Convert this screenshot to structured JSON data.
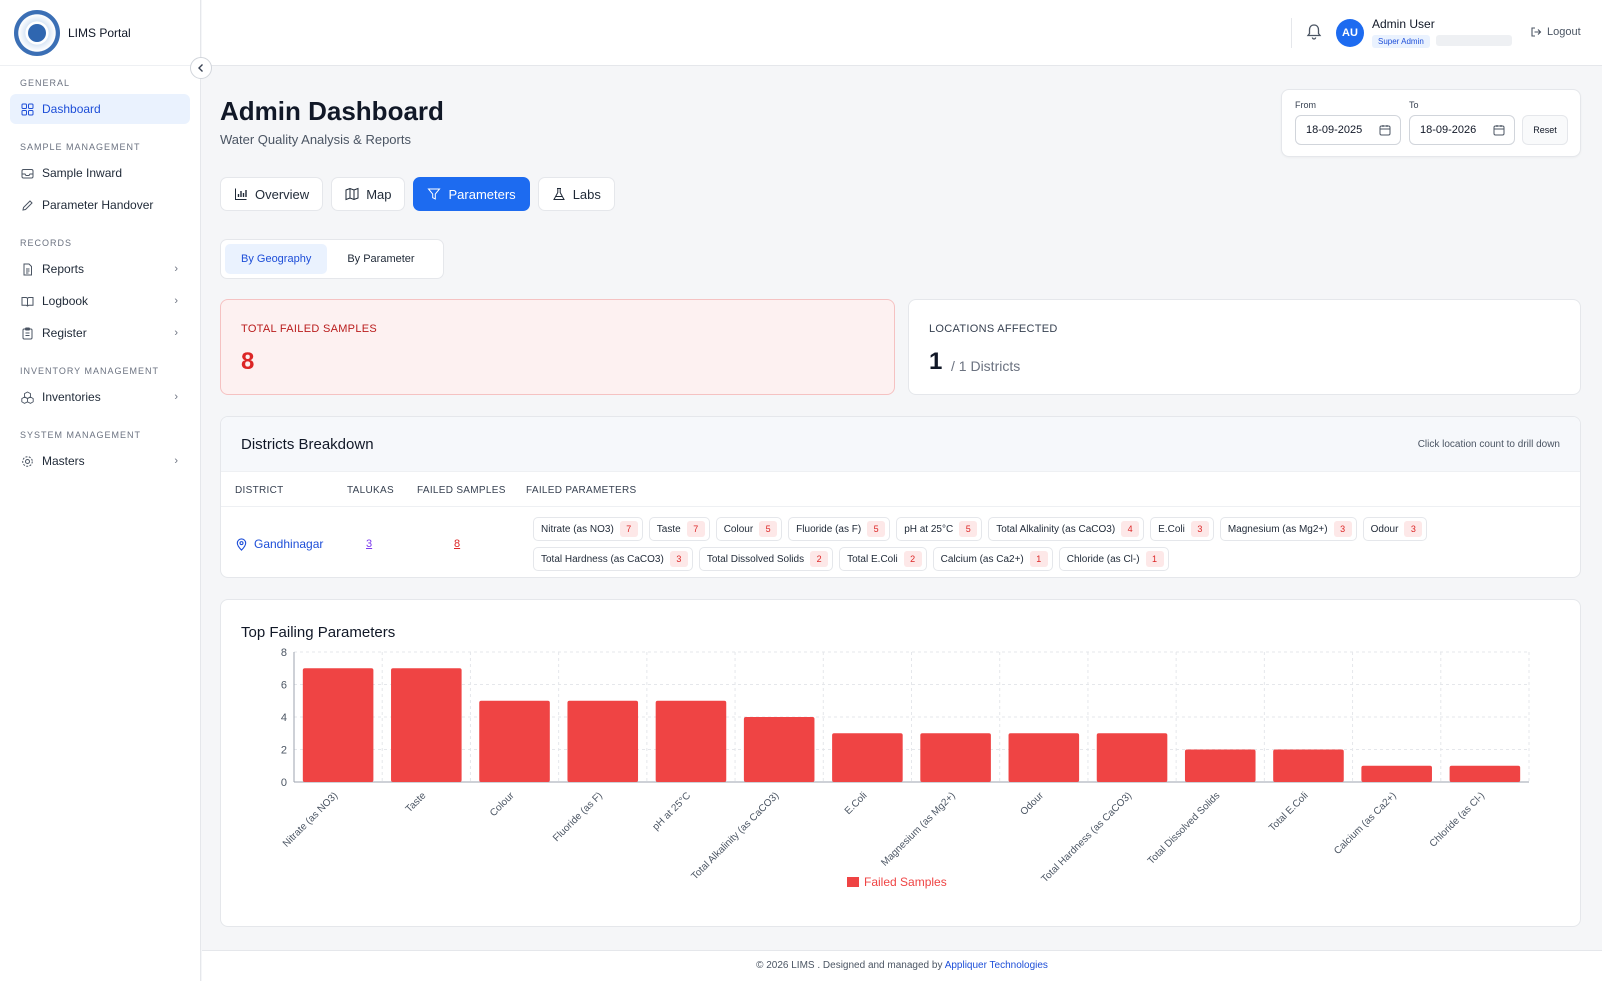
{
  "app": {
    "name": "LIMS Portal"
  },
  "sidebar": {
    "sections": [
      {
        "title": "GENERAL",
        "items": [
          {
            "label": "Dashboard",
            "icon": "grid-icon",
            "active": true
          }
        ]
      },
      {
        "title": "SAMPLE MANAGEMENT",
        "items": [
          {
            "label": "Sample Inward",
            "icon": "inbox-icon"
          },
          {
            "label": "Parameter Handover",
            "icon": "pen-icon"
          }
        ]
      },
      {
        "title": "RECORDS",
        "items": [
          {
            "label": "Reports",
            "icon": "file-icon"
          },
          {
            "label": "Logbook",
            "icon": "book-icon"
          },
          {
            "label": "Register",
            "icon": "clipboard-icon"
          }
        ]
      },
      {
        "title": "INVENTORY MANAGEMENT",
        "items": [
          {
            "label": "Inventories",
            "icon": "boxes-icon"
          }
        ]
      },
      {
        "title": "SYSTEM MANAGEMENT",
        "items": [
          {
            "label": "Masters",
            "icon": "gear-icon"
          }
        ]
      }
    ]
  },
  "header": {
    "user_initials": "AU",
    "user_name": "Admin User",
    "user_role": "Super Admin",
    "logout_label": "Logout"
  },
  "page": {
    "title": "Admin Dashboard",
    "subtitle": "Water Quality Analysis & Reports"
  },
  "date_filter": {
    "from_label": "From",
    "from_value": "18-09-2025",
    "to_label": "To",
    "to_value": "18-09-2026",
    "reset_label": "Reset"
  },
  "tabs": [
    {
      "label": "Overview",
      "icon": "bar-chart-icon"
    },
    {
      "label": "Map",
      "icon": "map-icon"
    },
    {
      "label": "Parameters",
      "icon": "filter-icon",
      "active": true
    },
    {
      "label": "Labs",
      "icon": "flask-icon"
    }
  ],
  "subtabs": [
    {
      "label": "By Geography",
      "active": true
    },
    {
      "label": "By Parameter"
    }
  ],
  "stats": {
    "failed_title": "TOTAL FAILED SAMPLES",
    "failed_value": "8",
    "locations_title": "LOCATIONS AFFECTED",
    "locations_value": "1",
    "locations_suffix": "/ 1 Districts"
  },
  "districts": {
    "title": "Districts Breakdown",
    "hint": "Click location count to drill down",
    "columns": [
      "DISTRICT",
      "TALUKAS",
      "FAILED SAMPLES",
      "FAILED PARAMETERS"
    ],
    "rows": [
      {
        "district": "Gandhinagar",
        "talukas": "3",
        "failed_samples": "8",
        "parameters": [
          {
            "name": "Nitrate (as NO3)",
            "count": "7"
          },
          {
            "name": "Taste",
            "count": "7"
          },
          {
            "name": "Colour",
            "count": "5"
          },
          {
            "name": "Fluoride (as F)",
            "count": "5"
          },
          {
            "name": "pH at 25°C",
            "count": "5"
          },
          {
            "name": "Total Alkalinity (as CaCO3)",
            "count": "4"
          },
          {
            "name": "E.Coli",
            "count": "3"
          },
          {
            "name": "Magnesium (as Mg2+)",
            "count": "3"
          },
          {
            "name": "Odour",
            "count": "3"
          },
          {
            "name": "Total Hardness (as CaCO3)",
            "count": "3"
          },
          {
            "name": "Total Dissolved Solids",
            "count": "2"
          },
          {
            "name": "Total E.Coli",
            "count": "2"
          },
          {
            "name": "Calcium (as Ca2+)",
            "count": "1"
          },
          {
            "name": "Chloride (as Cl-)",
            "count": "1"
          }
        ]
      }
    ]
  },
  "chart_title": "Top Failing Parameters",
  "chart_data": {
    "type": "bar",
    "categories": [
      "Nitrate (as NO3)",
      "Taste",
      "Colour",
      "Fluoride (as F)",
      "pH at 25°C",
      "Total Alkalinity (as CaCO3)",
      "E.Coli",
      "Magnesium (as Mg2+)",
      "Odour",
      "Total Hardness (as CaCO3)",
      "Total Dissolved Solids",
      "Total E.Coli",
      "Calcium (as Ca2+)",
      "Chloride (as Cl-)"
    ],
    "series": [
      {
        "name": "Failed Samples",
        "values": [
          7,
          7,
          5,
          5,
          5,
          4,
          3,
          3,
          3,
          3,
          2,
          2,
          1,
          1
        ]
      }
    ],
    "yticks": [
      0,
      2,
      4,
      6,
      8
    ],
    "ylim": [
      0,
      8
    ],
    "grid": true,
    "legend": "bottom",
    "colors": {
      "bar": "#ef4444"
    }
  },
  "footer": {
    "text": "© 2026 LIMS . Designed and managed by",
    "link": "Appliquer Technologies"
  }
}
